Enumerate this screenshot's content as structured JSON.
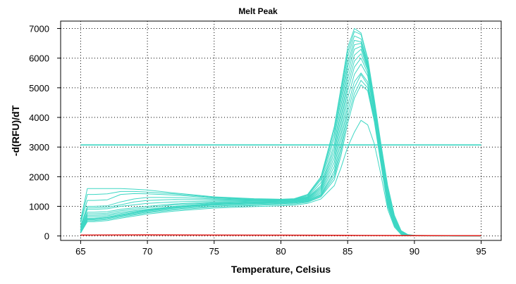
{
  "chart_data": {
    "type": "line",
    "title": "Melt Peak",
    "xlabel": "Temperature, Celsius",
    "ylabel": "-d(RFU)/dT",
    "xlim": [
      63.5,
      96.5
    ],
    "ylim": [
      -150,
      7250
    ],
    "xticks": [
      65,
      70,
      75,
      80,
      85,
      90,
      95
    ],
    "yticks": [
      0,
      1000,
      2000,
      3000,
      4000,
      5000,
      6000,
      7000
    ],
    "grid": "dotted",
    "legend": "none",
    "colors": {
      "series": "#3ed7c4",
      "threshold": "#3ed7c4",
      "negative": "#e0201c",
      "frame": "#000000",
      "grid": "#000000"
    },
    "x": [
      65,
      65.5,
      66,
      67,
      68,
      69,
      70,
      72,
      75,
      78,
      80,
      81,
      82,
      83,
      84,
      84.5,
      85,
      85.5,
      86,
      86.5,
      87,
      87.5,
      88,
      88.5,
      89,
      89.5,
      90,
      92,
      95
    ],
    "series": [
      {
        "values": [
          550,
          1600,
          1600,
          1600,
          1600,
          1580,
          1550,
          1450,
          1320,
          1260,
          1240,
          1260,
          1400,
          2000,
          3700,
          5000,
          6350,
          7000,
          6850,
          6000,
          4600,
          3100,
          1700,
          700,
          180,
          50,
          20,
          10,
          0
        ]
      },
      {
        "values": [
          500,
          1400,
          1400,
          1420,
          1500,
          1500,
          1480,
          1420,
          1300,
          1250,
          1230,
          1250,
          1380,
          1950,
          3600,
          4900,
          6200,
          6900,
          6800,
          5950,
          4500,
          3000,
          1600,
          650,
          160,
          40,
          15,
          8,
          0
        ]
      },
      {
        "values": [
          450,
          1200,
          1200,
          1220,
          1400,
          1430,
          1420,
          1380,
          1280,
          1230,
          1220,
          1240,
          1350,
          1900,
          3450,
          4750,
          6050,
          6750,
          6650,
          5850,
          4450,
          2950,
          1550,
          600,
          150,
          40,
          15,
          8,
          0
        ]
      },
      {
        "values": [
          350,
          1000,
          1000,
          1020,
          1150,
          1250,
          1300,
          1300,
          1250,
          1220,
          1210,
          1230,
          1320,
          1800,
          3300,
          4600,
          5850,
          6600,
          6550,
          5800,
          4400,
          2900,
          1500,
          580,
          140,
          35,
          12,
          6,
          0
        ]
      },
      {
        "values": [
          300,
          950,
          950,
          970,
          1050,
          1150,
          1200,
          1230,
          1220,
          1200,
          1200,
          1220,
          1300,
          1700,
          3100,
          4400,
          5700,
          6450,
          6500,
          5750,
          4350,
          2850,
          1450,
          550,
          130,
          30,
          10,
          5,
          0
        ]
      },
      {
        "values": [
          280,
          900,
          900,
          920,
          1000,
          1050,
          1100,
          1150,
          1180,
          1190,
          1190,
          1210,
          1280,
          1650,
          2950,
          4200,
          5500,
          6300,
          6400,
          5700,
          4300,
          2800,
          1400,
          520,
          120,
          30,
          10,
          5,
          0
        ]
      },
      {
        "values": [
          250,
          800,
          800,
          820,
          900,
          950,
          1000,
          1080,
          1150,
          1170,
          1180,
          1200,
          1270,
          1600,
          2800,
          4000,
          5300,
          6100,
          6300,
          5650,
          4250,
          2750,
          1350,
          500,
          110,
          28,
          10,
          5,
          0
        ]
      },
      {
        "values": [
          220,
          750,
          750,
          770,
          850,
          900,
          950,
          1050,
          1120,
          1150,
          1160,
          1180,
          1250,
          1550,
          2650,
          3800,
          5100,
          5900,
          6150,
          5600,
          4200,
          2700,
          1300,
          480,
          100,
          25,
          8,
          4,
          0
        ]
      },
      {
        "values": [
          200,
          700,
          700,
          720,
          800,
          850,
          900,
          1000,
          1100,
          1140,
          1150,
          1170,
          1230,
          1500,
          2500,
          3600,
          4900,
          5700,
          6000,
          5500,
          4150,
          2650,
          1250,
          450,
          90,
          22,
          8,
          4,
          0
        ]
      },
      {
        "values": [
          180,
          650,
          650,
          680,
          760,
          820,
          880,
          980,
          1080,
          1120,
          1140,
          1160,
          1210,
          1450,
          2350,
          3400,
          4650,
          5450,
          5800,
          5400,
          4100,
          2600,
          1200,
          420,
          80,
          20,
          8,
          4,
          0
        ]
      },
      {
        "values": [
          160,
          600,
          600,
          640,
          720,
          790,
          860,
          960,
          1060,
          1100,
          1120,
          1140,
          1190,
          1400,
          2200,
          3200,
          4400,
          5200,
          5500,
          5200,
          4000,
          2550,
          1150,
          400,
          75,
          18,
          6,
          3,
          0
        ]
      },
      {
        "values": [
          150,
          580,
          580,
          620,
          700,
          770,
          840,
          940,
          1040,
          1090,
          1110,
          1130,
          1180,
          1380,
          2100,
          3000,
          4200,
          5000,
          5450,
          5100,
          3950,
          2500,
          1100,
          380,
          70,
          16,
          6,
          3,
          0
        ]
      },
      {
        "values": [
          130,
          550,
          550,
          590,
          670,
          740,
          810,
          910,
          1010,
          1060,
          1090,
          1110,
          1160,
          1350,
          2000,
          2850,
          4000,
          4800,
          5250,
          5000,
          3900,
          2450,
          1050,
          360,
          65,
          15,
          5,
          2,
          0
        ]
      },
      {
        "values": [
          120,
          520,
          520,
          560,
          640,
          710,
          780,
          880,
          980,
          1030,
          1060,
          1080,
          1140,
          1320,
          1900,
          2700,
          3800,
          4650,
          5100,
          4900,
          3850,
          2400,
          1000,
          340,
          60,
          14,
          5,
          2,
          0
        ]
      },
      {
        "values": [
          100,
          480,
          480,
          520,
          600,
          670,
          740,
          840,
          940,
          990,
          1020,
          1040,
          1100,
          1250,
          1700,
          2300,
          3000,
          3500,
          3900,
          3750,
          3100,
          2050,
          900,
          300,
          50,
          12,
          4,
          2,
          0
        ]
      }
    ],
    "threshold": {
      "x": [
        65,
        95
      ],
      "values": [
        3070,
        3070
      ]
    },
    "negative": {
      "x": [
        65,
        70,
        75,
        80,
        85,
        90,
        95
      ],
      "values": [
        30,
        35,
        30,
        25,
        20,
        12,
        8
      ]
    }
  }
}
